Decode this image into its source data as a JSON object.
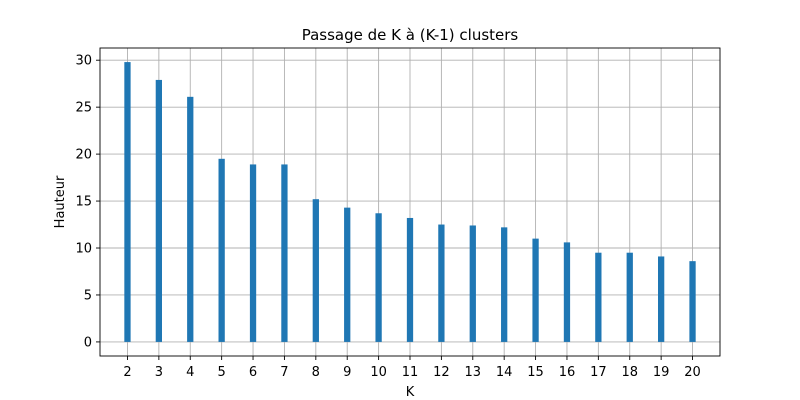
{
  "chart_data": {
    "type": "bar",
    "title": "Passage de K à (K-1) clusters",
    "xlabel": "K",
    "ylabel": "Hauteur",
    "categories": [
      2,
      3,
      4,
      5,
      6,
      7,
      8,
      9,
      10,
      11,
      12,
      13,
      14,
      15,
      16,
      17,
      18,
      19,
      20
    ],
    "values": [
      29.8,
      27.9,
      26.1,
      19.5,
      18.9,
      18.9,
      15.2,
      14.3,
      13.7,
      13.2,
      12.5,
      12.4,
      12.2,
      11.0,
      10.6,
      9.5,
      9.5,
      9.1,
      8.6
    ],
    "ylim": [
      -1.5,
      31.3
    ],
    "yticks": [
      0,
      5,
      10,
      15,
      20,
      25,
      30
    ],
    "grid": true,
    "color": "#1f77b4"
  }
}
